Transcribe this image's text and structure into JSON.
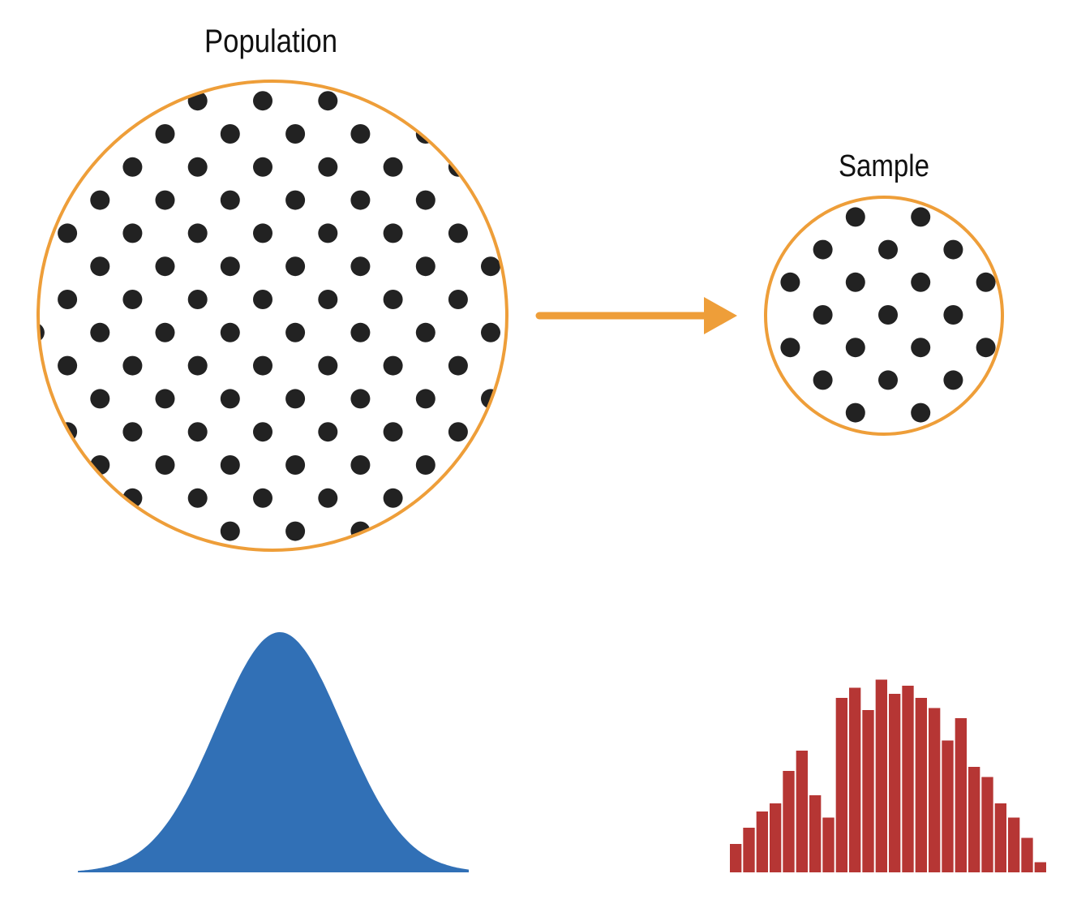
{
  "population": {
    "title": "Population"
  },
  "sample": {
    "title": "Sample"
  },
  "colors": {
    "circle_outline": "#EE9E39",
    "arrow": "#EE9E39",
    "dot": "#222222",
    "population_curve": "#3170B6",
    "sample_histogram": "#B63634",
    "background": "#FFFFFF"
  },
  "sample_histogram": {
    "relative_heights": [
      0.14,
      0.22,
      0.3,
      0.34,
      0.5,
      0.6,
      0.38,
      0.27,
      0.86,
      0.91,
      0.8,
      0.95,
      0.88,
      0.92,
      0.86,
      0.81,
      0.65,
      0.76,
      0.52,
      0.47,
      0.34,
      0.27,
      0.17,
      0.05
    ]
  }
}
